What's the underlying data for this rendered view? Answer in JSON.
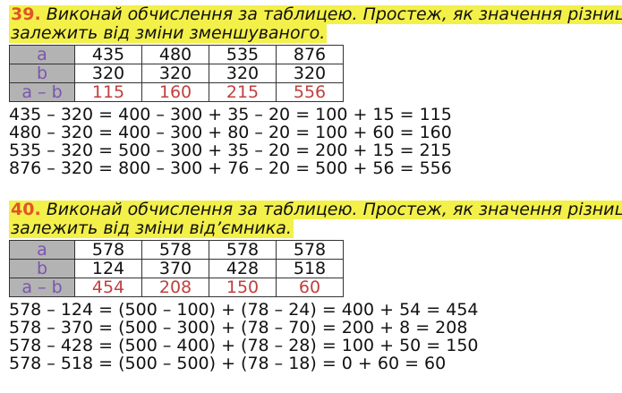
{
  "tasks": [
    {
      "number": "39.",
      "line1": "Виконай обчислення за таблицею. Простеж, як значення різниці",
      "line2": "залежить від зміни зменшуваного.",
      "labels": [
        "a",
        "b",
        "a – b"
      ],
      "a": [
        "435",
        "480",
        "535",
        "876"
      ],
      "b": [
        "320",
        "320",
        "320",
        "320"
      ],
      "diff": [
        "115",
        "160",
        "215",
        "556"
      ],
      "equations": [
        "435 – 320 = 400 – 300 + 35 – 20 = 100 + 15 = 115",
        "480 – 320 = 400 – 300 + 80 – 20 = 100 + 60 = 160",
        "535 – 320 = 500 – 300 + 35 – 20 = 200 + 15 = 215",
        "876 – 320 = 800 – 300 + 76 – 20 = 500 + 56 = 556"
      ]
    },
    {
      "number": "40.",
      "line1": "Виконай обчислення за таблицею. Простеж, як значення різниці",
      "line2": "залежить від зміни від’ємника.",
      "labels": [
        "a",
        "b",
        "a – b"
      ],
      "a": [
        "578",
        "578",
        "578",
        "578"
      ],
      "b": [
        "124",
        "370",
        "428",
        "518"
      ],
      "diff": [
        "454",
        "208",
        "150",
        "60"
      ],
      "equations": [
        "578 – 124 = (500 – 100) + (78 – 24) = 400 + 54 = 454",
        "578 – 370 = (500 – 300) + (78 – 70) = 200 + 8 = 208",
        "578 – 428 = (500 – 400) + (78 – 28) = 100 + 50 = 150",
        "578 – 518 = (500 – 500) + (78 – 18) = 0 + 60 = 60"
      ]
    }
  ],
  "colors": {
    "highlight": "#f3f04a",
    "number": "#e0542a",
    "result": "#c0403e",
    "label": "#7b55b0"
  }
}
